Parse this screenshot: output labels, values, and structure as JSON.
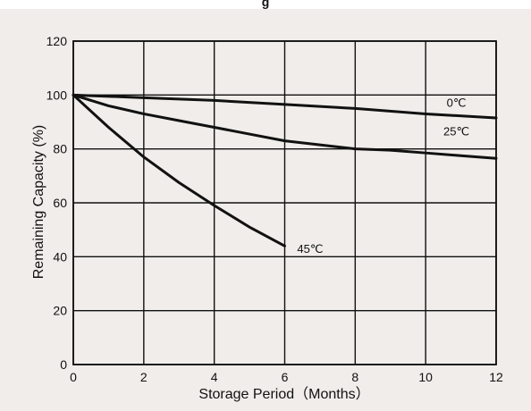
{
  "header": {
    "cut_title": "g"
  },
  "chart_data": {
    "type": "line",
    "title": "",
    "xlabel": "Storage Period（Months）",
    "ylabel": "Remaining Capacity (%)",
    "xlim": [
      0,
      12
    ],
    "ylim": [
      0,
      120
    ],
    "x_ticks": [
      0,
      2,
      4,
      6,
      8,
      10,
      12
    ],
    "y_ticks": [
      0,
      20,
      40,
      60,
      80,
      100,
      120
    ],
    "grid": true,
    "series": [
      {
        "name": "0℃",
        "x": [
          0,
          2,
          4,
          6,
          8,
          10,
          12
        ],
        "values": [
          100,
          99,
          98,
          96.5,
          95,
          93,
          91.5
        ]
      },
      {
        "name": "25℃",
        "x": [
          0,
          1,
          2,
          3,
          4,
          5,
          6,
          7,
          8,
          9,
          10,
          11,
          12
        ],
        "values": [
          100,
          96,
          93,
          90.5,
          88,
          85.5,
          83,
          81.5,
          80,
          79.5,
          78.5,
          77.5,
          76.5
        ]
      },
      {
        "name": "45℃",
        "x": [
          0,
          1,
          2,
          3,
          4,
          5,
          6
        ],
        "values": [
          100,
          88,
          77,
          67.5,
          59,
          51,
          44
        ]
      }
    ],
    "colors": {
      "background": "#f0edea",
      "plot": "#f0edea",
      "lines": "#111111",
      "grid": "#111111"
    }
  }
}
